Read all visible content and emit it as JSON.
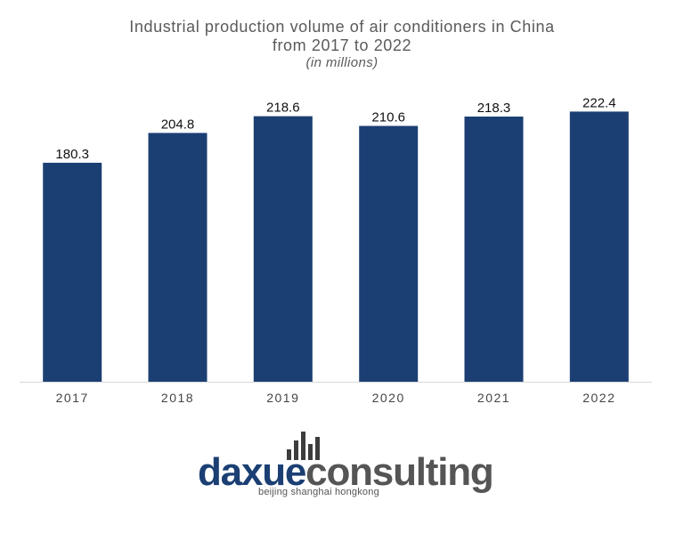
{
  "chart_data": {
    "type": "bar",
    "title": "Industrial production volume of air conditioners in China",
    "title_line2": "from 2017 to 2022",
    "subtitle": "(in millions)",
    "categories": [
      "2017",
      "2018",
      "2019",
      "2020",
      "2021",
      "2022"
    ],
    "values": [
      180.3,
      204.8,
      218.6,
      210.6,
      218.3,
      222.4
    ],
    "value_labels": [
      "180.3",
      "204.8",
      "218.6",
      "210.6",
      "218.3",
      "222.4"
    ],
    "xlabel": "",
    "ylabel": "",
    "ylim": [
      0,
      230
    ],
    "grid": false,
    "legend": "none",
    "bar_color": "#1b3f73"
  },
  "logo": {
    "word_part1": "daxue",
    "word_part2": "consulting",
    "tagline": "beijing shanghai hongkong"
  }
}
